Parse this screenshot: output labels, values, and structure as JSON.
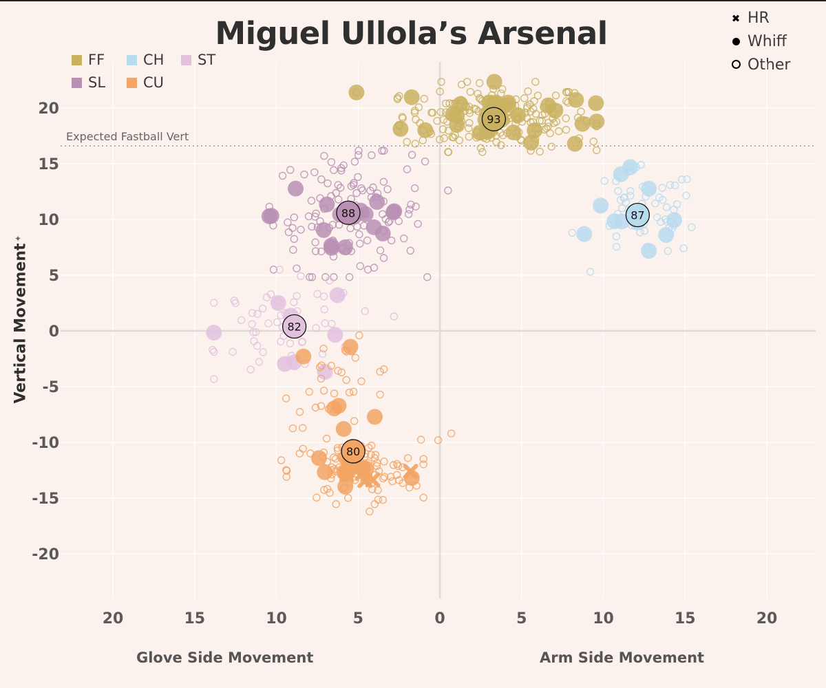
{
  "title": "Miguel Ullola’s Arsenal",
  "legend": {
    "pitch_types": [
      {
        "code": "FF",
        "color": "#c9b160"
      },
      {
        "code": "CH",
        "color": "#b9dbee"
      },
      {
        "code": "ST",
        "color": "#e2c1df"
      },
      {
        "code": "SL",
        "color": "#b98fb4"
      },
      {
        "code": "CU",
        "color": "#f2a564"
      }
    ],
    "outcomes": [
      {
        "label": "HR",
        "glyph": "x-mark-icon"
      },
      {
        "label": "Whiff",
        "glyph": "filled-dot-icon"
      },
      {
        "label": "Other",
        "glyph": "open-dot-icon"
      }
    ]
  },
  "axes": {
    "ylabel": "Vertical Movement",
    "xlabel_left": "Glove Side Movement",
    "xlabel_right": "Arm Side Movement",
    "ref_line_label": "Expected Fastball Vert"
  },
  "chart_data": {
    "type": "scatter",
    "title": "Miguel Ullola’s Arsenal",
    "xlabel": "Glove Side Movement / Arm Side Movement",
    "ylabel": "Vertical Movement",
    "xlim": [
      -23.5,
      22.5
    ],
    "ylim": [
      -23.5,
      24
    ],
    "x_ticks": [
      -20,
      -15,
      -10,
      -5,
      0,
      5,
      10,
      15,
      20
    ],
    "x_tick_labels": [
      "20",
      "15",
      "10",
      "5",
      "0",
      "5",
      "10",
      "15",
      "20"
    ],
    "y_ticks": [
      -20,
      -15,
      -10,
      -5,
      0,
      5,
      10,
      15,
      20
    ],
    "y_tick_labels": [
      "-20",
      "-15",
      "-10",
      "-5",
      "0",
      "5",
      "10",
      "15",
      "20"
    ],
    "reference_line": {
      "y": 16.6,
      "label": "Expected Fastball Vert"
    },
    "averages": [
      {
        "pitch": "FF",
        "x": 3.3,
        "y": 19.0,
        "velo": "93"
      },
      {
        "pitch": "SL",
        "x": -5.6,
        "y": 10.6,
        "velo": "88"
      },
      {
        "pitch": "CH",
        "x": 12.1,
        "y": 10.4,
        "velo": "87"
      },
      {
        "pitch": "ST",
        "x": -8.9,
        "y": 0.4,
        "velo": "82"
      },
      {
        "pitch": "CU",
        "x": -5.3,
        "y": -10.8,
        "velo": "80"
      }
    ],
    "clusters": [
      {
        "pitch": "FF",
        "cx": 3.5,
        "cy": 19.2,
        "sx": 2.9,
        "sy": 1.5,
        "other": 200,
        "whiff": 32,
        "hr": 0,
        "outliers": [
          [
            -5.1,
            21.4
          ],
          [
            -1.5,
            16.8
          ],
          [
            9.4,
            17.0
          ],
          [
            -2.5,
            18.5
          ],
          [
            -2.3,
            19.2
          ]
        ]
      },
      {
        "pitch": "SL",
        "cx": -5.6,
        "cy": 10.5,
        "sx": 2.3,
        "sy": 2.7,
        "other": 110,
        "whiff": 18,
        "hr": 0,
        "outliers": [
          [
            0.5,
            12.6
          ],
          [
            -1.8,
            7.2
          ],
          [
            -2.0,
            14.5
          ],
          [
            -1.7,
            15.8
          ],
          [
            -2.2,
            8.3
          ]
        ]
      },
      {
        "pitch": "CH",
        "cx": 12.4,
        "cy": 10.5,
        "sx": 1.7,
        "sy": 2.0,
        "other": 55,
        "whiff": 12,
        "hr": 0,
        "outliers": [
          [
            8.1,
            8.8
          ],
          [
            9.2,
            5.3
          ],
          [
            12.3,
            14.9
          ],
          [
            15.4,
            9.3
          ]
        ]
      },
      {
        "pitch": "ST",
        "cx": -9.2,
        "cy": 0.3,
        "sx": 2.2,
        "sy": 2.2,
        "other": 50,
        "whiff": 8,
        "hr": 0,
        "outliers": [
          [
            -13.9,
            -1.7
          ],
          [
            -2.8,
            1.3
          ],
          [
            -9.8,
            5.5
          ],
          [
            -12.5,
            2.5
          ]
        ]
      },
      {
        "pitch": "CU",
        "cx": -6.0,
        "cy": -4.6,
        "sx": 1.8,
        "sy": 2.0,
        "other": 30,
        "whiff": 6,
        "hr": 0,
        "outliers": [
          [
            -6.8,
            -7.0
          ]
        ]
      },
      {
        "pitch": "CU",
        "cx": -5.2,
        "cy": -12.6,
        "sx": 2.0,
        "sy": 1.4,
        "other": 85,
        "whiff": 14,
        "hr": 5,
        "outliers": [
          [
            0.7,
            -9.2
          ],
          [
            -0.1,
            -9.8
          ],
          [
            -9.7,
            -11.6
          ],
          [
            -4.3,
            -16.2
          ]
        ]
      }
    ]
  }
}
